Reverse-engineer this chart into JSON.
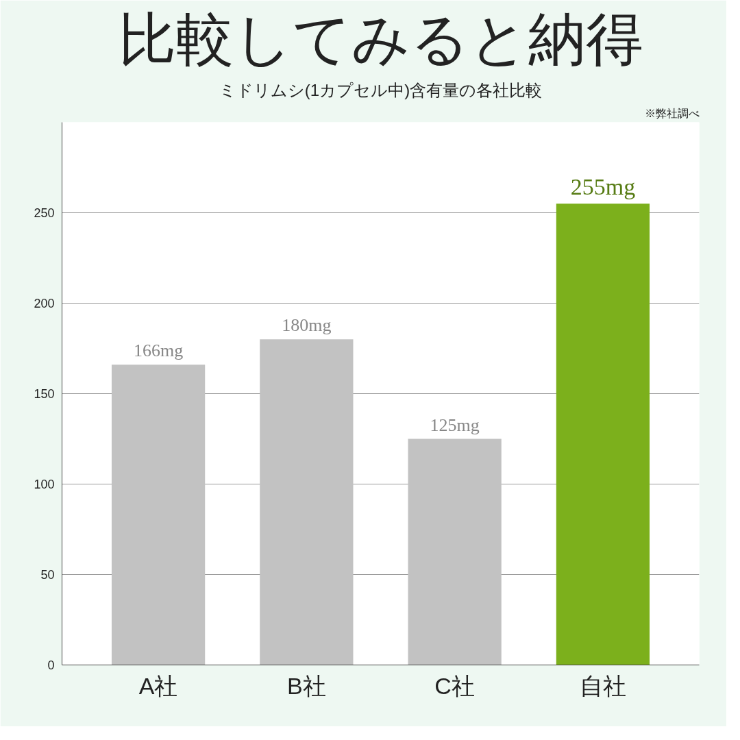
{
  "chart_data": {
    "type": "bar",
    "title": "比較してみると納得",
    "subtitle": "ミドリムシ(1カプセル中)含有量の各社比較",
    "annotations": [
      "※弊社調べ"
    ],
    "categories": [
      "A社",
      "B社",
      "C社",
      "自社"
    ],
    "values": [
      166,
      180,
      125,
      255
    ],
    "colors": [
      "#c2c2c2",
      "#c2c2c2",
      "#c2c2c2",
      "#7cb01c"
    ],
    "value_labels": [
      "166mg",
      "180mg",
      "125mg",
      "255mg"
    ],
    "ylim": [
      0,
      300
    ],
    "yticks": [
      0,
      50,
      100,
      150,
      200,
      250
    ],
    "grid": "y"
  }
}
